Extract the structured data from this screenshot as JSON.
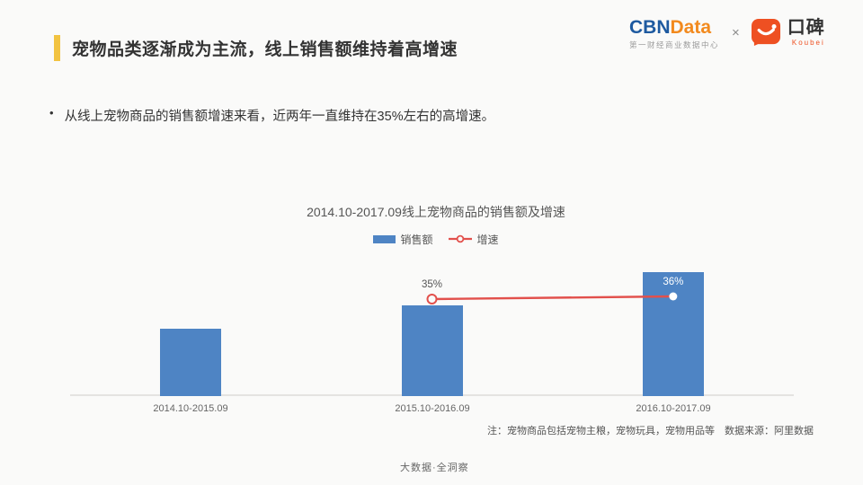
{
  "header": {
    "title": "宠物品类逐渐成为主流，线上销售额维持着高增速"
  },
  "logos": {
    "cbn_part1": "CBN",
    "cbn_part2": "Data",
    "cbn_subtitle": "第一财经商业数据中心",
    "separator": "×",
    "koubei_name": "口碑",
    "koubei_sub": "Koubei"
  },
  "bullet": {
    "marker": "•",
    "text": "从线上宠物商品的销售额增速来看，近两年一直维持在35%左右的高增速。"
  },
  "chart_data": {
    "type": "bar+line",
    "title": "2014.10-2017.09线上宠物商品的销售额及增速",
    "categories": [
      "2014.10-2015.09",
      "2015.10-2016.09",
      "2016.10-2017.09"
    ],
    "series": [
      {
        "name": "销售额",
        "type": "bar",
        "values_relative": [
          1.0,
          1.35,
          1.84
        ],
        "axis": "left-hidden"
      },
      {
        "name": "增速",
        "type": "line",
        "values_percent": [
          null,
          35,
          36
        ],
        "point_labels": [
          "",
          "35%",
          "36%"
        ]
      }
    ],
    "legend": [
      "销售额",
      "增速"
    ],
    "legend_position": "top-center",
    "grid": false,
    "y_axis_labels_shown": false
  },
  "footnote": "注：宠物商品包括宠物主粮，宠物玩具，宠物用品等　数据来源：阿里数据",
  "footer": "大数据·全洞察",
  "colors": {
    "accent-yellow": "#f2c341",
    "bar-blue": "#4e84c4",
    "line-red": "#e2504c",
    "cbn-blue": "#1e5aa0",
    "cbn-orange": "#f28a1e",
    "koubei-orange": "#ee5022",
    "point-label-dark": "#555555",
    "point-label-light": "#ffffff"
  }
}
